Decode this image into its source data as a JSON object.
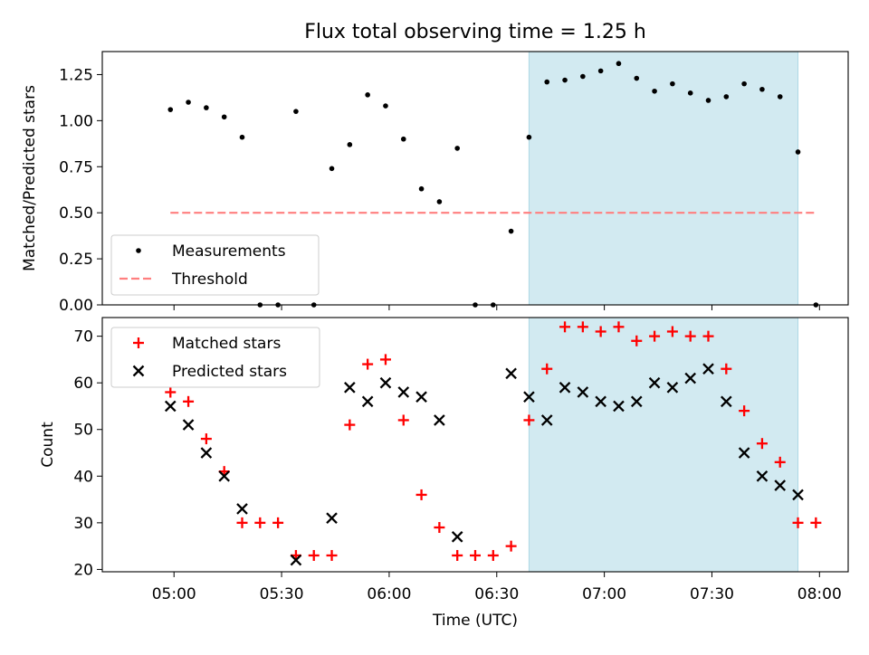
{
  "title": "Flux total observing time = 1.25 h",
  "colors": {
    "points": "#000000",
    "threshold": "#ff7f7f",
    "matched": "#ff0000",
    "predicted": "#000000",
    "highlight": "#add8e6"
  },
  "chart_data": [
    {
      "type": "scatter",
      "ylabel": "Matched/Predicted stars",
      "ylim": [
        0,
        1.375
      ],
      "yticks": [
        0.0,
        0.25,
        0.5,
        0.75,
        1.0,
        1.25
      ],
      "ytick_labels": [
        "0.00",
        "0.25",
        "0.50",
        "0.75",
        "1.00",
        "1.25"
      ],
      "highlight_span": [
        "06:39",
        "07:54"
      ],
      "legend_placement": "lower-left",
      "series": [
        {
          "name": "Measurements",
          "kind": "points",
          "x": [
            "04:59",
            "05:04",
            "05:09",
            "05:14",
            "05:19",
            "05:24",
            "05:29",
            "05:34",
            "05:39",
            "05:44",
            "05:49",
            "05:54",
            "05:59",
            "06:04",
            "06:09",
            "06:14",
            "06:19",
            "06:24",
            "06:29",
            "06:34",
            "06:39",
            "06:44",
            "06:49",
            "06:54",
            "06:59",
            "07:04",
            "07:09",
            "07:14",
            "07:19",
            "07:24",
            "07:29",
            "07:34",
            "07:39",
            "07:44",
            "07:49",
            "07:54",
            "07:59"
          ],
          "values": [
            1.06,
            1.1,
            1.07,
            1.02,
            0.91,
            0.0,
            0.0,
            1.05,
            0.0,
            0.74,
            0.87,
            1.14,
            1.08,
            0.9,
            0.63,
            0.56,
            0.85,
            0.0,
            0.0,
            0.4,
            0.91,
            1.21,
            1.22,
            1.24,
            1.27,
            1.31,
            1.23,
            1.16,
            1.2,
            1.15,
            1.11,
            1.13,
            1.2,
            1.17,
            1.13,
            0.83,
            0.0
          ]
        },
        {
          "name": "Threshold",
          "kind": "dashed-line",
          "x": [
            "04:59",
            "07:59"
          ],
          "values": [
            0.5,
            0.5
          ]
        }
      ]
    },
    {
      "type": "scatter",
      "ylabel": "Count",
      "xlabel": "Time (UTC)",
      "ylim": [
        19.5,
        74
      ],
      "yticks": [
        20,
        30,
        40,
        50,
        60,
        70
      ],
      "ytick_labels": [
        "20",
        "30",
        "40",
        "50",
        "60",
        "70"
      ],
      "xticks": [
        "05:00",
        "05:30",
        "06:00",
        "06:30",
        "07:00",
        "07:30",
        "08:00"
      ],
      "xlim": [
        "04:40",
        "08:08"
      ],
      "highlight_span": [
        "06:39",
        "07:54"
      ],
      "legend_placement": "upper-left",
      "series": [
        {
          "name": "Matched stars",
          "marker": "plus",
          "x": [
            "04:59",
            "05:04",
            "05:09",
            "05:14",
            "05:19",
            "05:24",
            "05:29",
            "05:34",
            "05:39",
            "05:44",
            "05:49",
            "05:54",
            "05:59",
            "06:04",
            "06:09",
            "06:14",
            "06:19",
            "06:24",
            "06:29",
            "06:34",
            "06:39",
            "06:44",
            "06:49",
            "06:54",
            "06:59",
            "07:04",
            "07:09",
            "07:14",
            "07:19",
            "07:24",
            "07:29",
            "07:34",
            "07:39",
            "07:44",
            "07:49",
            "07:54",
            "07:59"
          ],
          "values": [
            58,
            56,
            48,
            41,
            30,
            30,
            30,
            23,
            23,
            23,
            51,
            64,
            65,
            52,
            36,
            29,
            23,
            23,
            23,
            25,
            52,
            63,
            72,
            72,
            71,
            72,
            69,
            70,
            71,
            70,
            70,
            63,
            54,
            47,
            43,
            30,
            30
          ]
        },
        {
          "name": "Predicted stars",
          "marker": "x",
          "x": [
            "04:59",
            "05:04",
            "05:09",
            "05:14",
            "05:19",
            "05:34",
            "05:44",
            "05:49",
            "05:54",
            "05:59",
            "06:04",
            "06:09",
            "06:14",
            "06:19",
            "06:34",
            "06:39",
            "06:44",
            "06:49",
            "06:54",
            "06:59",
            "07:04",
            "07:09",
            "07:14",
            "07:19",
            "07:24",
            "07:29",
            "07:34",
            "07:39",
            "07:44",
            "07:49",
            "07:54"
          ],
          "values": [
            55,
            51,
            45,
            40,
            33,
            22,
            31,
            59,
            56,
            60,
            58,
            57,
            52,
            27,
            62,
            57,
            52,
            59,
            58,
            56,
            55,
            56,
            60,
            59,
            61,
            63,
            56,
            45,
            40,
            38,
            36
          ]
        }
      ]
    }
  ]
}
